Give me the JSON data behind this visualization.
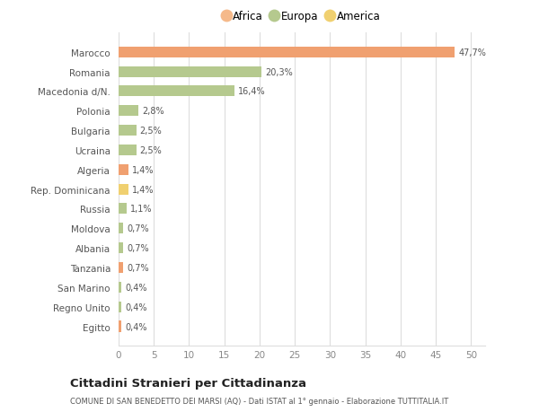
{
  "categories": [
    "Egitto",
    "Regno Unito",
    "San Marino",
    "Tanzania",
    "Albania",
    "Moldova",
    "Russia",
    "Rep. Dominicana",
    "Algeria",
    "Ucraina",
    "Bulgaria",
    "Polonia",
    "Macedonia d/N.",
    "Romania",
    "Marocco"
  ],
  "values": [
    0.4,
    0.4,
    0.4,
    0.7,
    0.7,
    0.7,
    1.1,
    1.4,
    1.4,
    2.5,
    2.5,
    2.8,
    16.4,
    20.3,
    47.7
  ],
  "colors": [
    "#f0a070",
    "#b5c98e",
    "#b5c98e",
    "#f0a070",
    "#b5c98e",
    "#b5c98e",
    "#b5c98e",
    "#f0d070",
    "#f0a070",
    "#b5c98e",
    "#b5c98e",
    "#b5c98e",
    "#b5c98e",
    "#b5c98e",
    "#f0a070"
  ],
  "labels": [
    "0,4%",
    "0,4%",
    "0,4%",
    "0,7%",
    "0,7%",
    "0,7%",
    "1,1%",
    "1,4%",
    "1,4%",
    "2,5%",
    "2,5%",
    "2,8%",
    "16,4%",
    "20,3%",
    "47,7%"
  ],
  "legend": [
    {
      "label": "Africa",
      "color": "#f5b98a"
    },
    {
      "label": "Europa",
      "color": "#b5c98e"
    },
    {
      "label": "America",
      "color": "#f0d070"
    }
  ],
  "xlim": [
    0,
    52
  ],
  "xticks": [
    0,
    5,
    10,
    15,
    20,
    25,
    30,
    35,
    40,
    45,
    50
  ],
  "title": "Cittadini Stranieri per Cittadinanza",
  "subtitle": "COMUNE DI SAN BENEDETTO DEI MARSI (AQ) - Dati ISTAT al 1° gennaio - Elaborazione TUTTITALIA.IT",
  "bg_color": "#ffffff",
  "grid_color": "#dddddd",
  "bar_height": 0.55
}
